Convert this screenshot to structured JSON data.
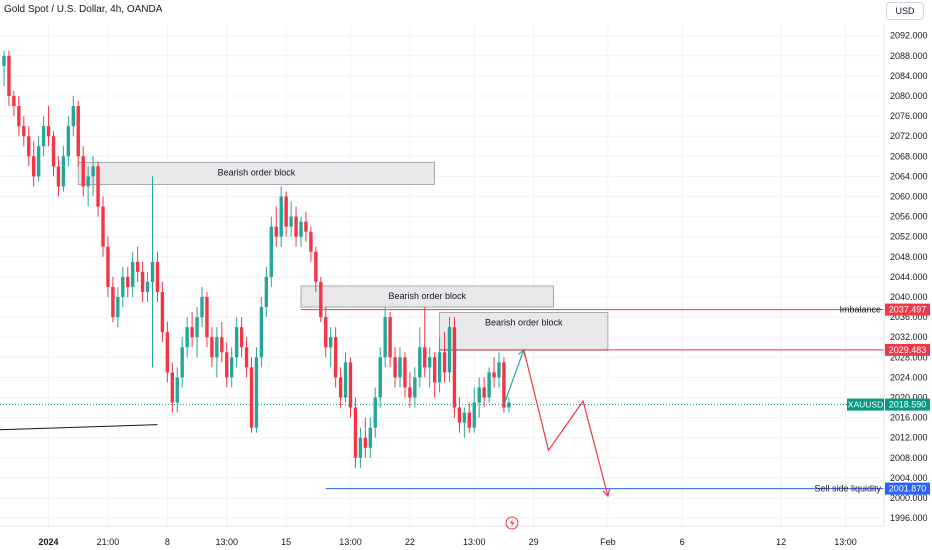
{
  "header": {
    "title": "Gold Spot / U.S. Dollar, 4h, OANDA",
    "currency": "USD"
  },
  "colors": {
    "up": "#26a69a",
    "down": "#f23645",
    "box_fill": "#e8e8ea",
    "box_stroke": "#9598a1",
    "level_red": "#f23645",
    "level_blue": "#2962ff",
    "price_tag": "#089981",
    "trend_line": "#131722"
  },
  "chart_data": {
    "type": "candlestick",
    "symbol": "XAUUSD",
    "timeframe": "4h",
    "ylim": [
      1994,
      2096
    ],
    "y_ticks": [
      "1996.000",
      "2000.000",
      "2004.000",
      "2008.000",
      "2012.000",
      "2016.000",
      "2020.000",
      "2024.000",
      "2028.000",
      "2032.000",
      "2036.000",
      "2040.000",
      "2044.000",
      "2048.000",
      "2052.000",
      "2056.000",
      "2060.000",
      "2064.000",
      "2068.000",
      "2072.000",
      "2076.000",
      "2080.000",
      "2084.000",
      "2088.000",
      "2092.000"
    ],
    "x_ticks": [
      {
        "label": "2024",
        "bar": 9,
        "bold": true
      },
      {
        "label": "21:00",
        "bar": 21
      },
      {
        "label": "8",
        "bar": 33
      },
      {
        "label": "13:00",
        "bar": 45
      },
      {
        "label": "15",
        "bar": 57
      },
      {
        "label": "13:00",
        "bar": 70
      },
      {
        "label": "22",
        "bar": 82
      },
      {
        "label": "13:00",
        "bar": 95
      },
      {
        "label": "29",
        "bar": 107
      },
      {
        "label": "Feb",
        "bar": 122
      },
      {
        "label": "6",
        "bar": 137
      },
      {
        "label": "12",
        "bar": 157
      },
      {
        "label": "13:00",
        "bar": 170
      }
    ],
    "candles": [
      [
        2086,
        2089,
        2082,
        2088
      ],
      [
        2088,
        2089,
        2078,
        2080
      ],
      [
        2080,
        2081,
        2076,
        2078
      ],
      [
        2078,
        2080,
        2072,
        2074
      ],
      [
        2074,
        2076,
        2070,
        2072
      ],
      [
        2072,
        2074,
        2066,
        2068
      ],
      [
        2068,
        2071,
        2062,
        2064
      ],
      [
        2064,
        2072,
        2063,
        2070
      ],
      [
        2070,
        2076,
        2068,
        2074
      ],
      [
        2074,
        2078,
        2070,
        2072
      ],
      [
        2072,
        2073,
        2064,
        2066
      ],
      [
        2066,
        2068,
        2060,
        2062
      ],
      [
        2062,
        2070,
        2061,
        2068
      ],
      [
        2068,
        2076,
        2066,
        2074
      ],
      [
        2074,
        2080,
        2072,
        2078
      ],
      [
        2078,
        2079,
        2066,
        2068
      ],
      [
        2068,
        2070,
        2060,
        2062
      ],
      [
        2062,
        2066,
        2058,
        2064
      ],
      [
        2064,
        2068,
        2060,
        2066
      ],
      [
        2066,
        2067,
        2056,
        2058
      ],
      [
        2058,
        2060,
        2048,
        2050
      ],
      [
        2050,
        2052,
        2040,
        2042
      ],
      [
        2042,
        2044,
        2035,
        2036
      ],
      [
        2036,
        2042,
        2034,
        2040
      ],
      [
        2040,
        2046,
        2038,
        2044
      ],
      [
        2044,
        2046,
        2040,
        2042
      ],
      [
        2042,
        2049,
        2040,
        2047
      ],
      [
        2047,
        2050,
        2043,
        2045
      ],
      [
        2045,
        2047,
        2039,
        2041
      ],
      [
        2041,
        2045,
        2039,
        2043
      ],
      [
        2043,
        2064,
        2026,
        2047
      ],
      [
        2047,
        2049,
        2039,
        2041
      ],
      [
        2041,
        2043,
        2031,
        2033
      ],
      [
        2033,
        2035,
        2023,
        2025
      ],
      [
        2025,
        2027,
        2017,
        2019
      ],
      [
        2019,
        2026,
        2017,
        2024
      ],
      [
        2024,
        2032,
        2022,
        2030
      ],
      [
        2030,
        2036,
        2028,
        2034
      ],
      [
        2034,
        2037,
        2030,
        2032
      ],
      [
        2032,
        2038,
        2028,
        2036
      ],
      [
        2036,
        2042,
        2034,
        2040
      ],
      [
        2040,
        2041,
        2030,
        2032
      ],
      [
        2032,
        2034,
        2026,
        2028
      ],
      [
        2028,
        2034,
        2024,
        2032
      ],
      [
        2032,
        2035,
        2027,
        2029
      ],
      [
        2029,
        2031,
        2022,
        2024
      ],
      [
        2024,
        2030,
        2022,
        2028
      ],
      [
        2028,
        2036,
        2026,
        2034
      ],
      [
        2034,
        2036,
        2028,
        2030
      ],
      [
        2030,
        2032,
        2024,
        2026
      ],
      [
        2026,
        2028,
        2013,
        2014
      ],
      [
        2014,
        2030,
        2013,
        2028
      ],
      [
        2028,
        2040,
        2026,
        2038
      ],
      [
        2038,
        2046,
        2036,
        2044
      ],
      [
        2044,
        2056,
        2042,
        2054
      ],
      [
        2054,
        2058,
        2050,
        2052
      ],
      [
        2052,
        2062,
        2050,
        2060
      ],
      [
        2060,
        2061,
        2052,
        2054
      ],
      [
        2054,
        2059,
        2052,
        2056
      ],
      [
        2056,
        2058,
        2050,
        2052
      ],
      [
        2052,
        2056,
        2050,
        2055
      ],
      [
        2055,
        2057,
        2051,
        2053
      ],
      [
        2053,
        2054,
        2047,
        2049
      ],
      [
        2049,
        2050,
        2041,
        2043
      ],
      [
        2043,
        2044,
        2035,
        2036
      ],
      [
        2036,
        2038,
        2028,
        2030
      ],
      [
        2030,
        2034,
        2026,
        2032
      ],
      [
        2032,
        2034,
        2022,
        2024
      ],
      [
        2024,
        2026,
        2018,
        2020
      ],
      [
        2020,
        2029,
        2019,
        2027
      ],
      [
        2027,
        2028,
        2016,
        2018
      ],
      [
        2018,
        2020,
        2006,
        2008
      ],
      [
        2008,
        2014,
        2006,
        2012
      ],
      [
        2012,
        2016,
        2008,
        2010
      ],
      [
        2010,
        2016,
        2008,
        2014
      ],
      [
        2014,
        2022,
        2012,
        2020
      ],
      [
        2020,
        2030,
        2018,
        2028
      ],
      [
        2028,
        2038,
        2026,
        2036
      ],
      [
        2036,
        2037,
        2026,
        2028
      ],
      [
        2028,
        2030,
        2022,
        2024
      ],
      [
        2024,
        2030,
        2022,
        2028
      ],
      [
        2028,
        2029,
        2020,
        2022
      ],
      [
        2022,
        2025,
        2018,
        2020
      ],
      [
        2020,
        2026,
        2018,
        2024
      ],
      [
        2024,
        2034,
        2022,
        2030
      ],
      [
        2030,
        2038,
        2024,
        2026
      ],
      [
        2026,
        2030,
        2022,
        2028
      ],
      [
        2028,
        2029,
        2020,
        2023
      ],
      [
        2023,
        2032,
        2021,
        2029
      ],
      [
        2029,
        2033,
        2023,
        2025
      ],
      [
        2025,
        2036,
        2023,
        2034
      ],
      [
        2034,
        2036,
        2016,
        2018
      ],
      [
        2018,
        2020,
        2013,
        2015
      ],
      [
        2015,
        2018,
        2012,
        2017
      ],
      [
        2017,
        2019,
        2013,
        2014
      ],
      [
        2014,
        2022,
        2013,
        2019
      ],
      [
        2019,
        2024,
        2016,
        2022
      ],
      [
        2022,
        2024,
        2018,
        2020
      ],
      [
        2020,
        2026,
        2019,
        2025
      ],
      [
        2025,
        2028,
        2022,
        2024
      ],
      [
        2024,
        2029,
        2022,
        2027
      ],
      [
        2027,
        2028,
        2017,
        2018
      ],
      [
        2018,
        2020,
        2017,
        2019
      ]
    ],
    "order_blocks": [
      {
        "label": "Bearish order block",
        "bar_start": 15,
        "bar_end": 87,
        "y_top": 2066.8,
        "y_bottom": 2062.4
      },
      {
        "label": "Bearish order block",
        "bar_start": 60,
        "bar_end": 111,
        "y_top": 2042.2,
        "y_bottom": 2038.0
      },
      {
        "label": "Bearish order block",
        "bar_start": 88,
        "bar_end": 122,
        "y_top": 2036.9,
        "y_bottom": 2029.4
      }
    ],
    "levels": [
      {
        "label": "Imbalance",
        "value": "2037.497",
        "y": 2037.497,
        "bar_start": 60,
        "color": "red"
      },
      {
        "label": "",
        "value": "2029.483",
        "y": 2029.483,
        "bar_start": 88,
        "color": "red"
      },
      {
        "label": "Sell side liquidity",
        "value": "2001.870",
        "y": 2001.87,
        "bar_start": 65,
        "color": "blue"
      }
    ],
    "last_price": {
      "symbol": "XAUUSD",
      "value": "2018.590",
      "y": 2018.59
    },
    "trend_line": {
      "from_bar": -3,
      "from_y": 2013.5,
      "to_bar": 31,
      "to_y": 2014.6
    },
    "projection_up": [
      [
        101,
        2018.6
      ],
      [
        105,
        2029.5
      ]
    ],
    "projection_down": [
      [
        105,
        2029.5
      ],
      [
        110,
        2009.5
      ],
      [
        117,
        2019.3
      ],
      [
        122,
        2000.4
      ]
    ]
  }
}
